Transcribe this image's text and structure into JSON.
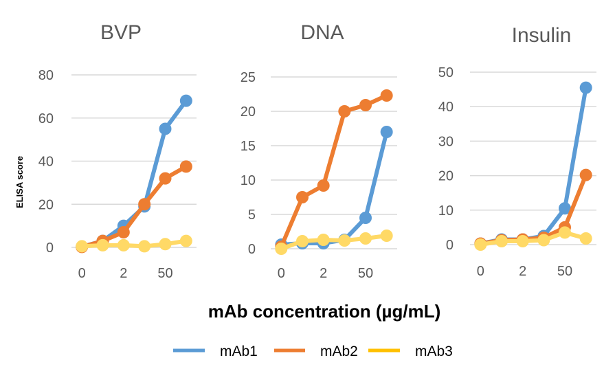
{
  "chart_data": {
    "type": "line",
    "ylabel": "ELISA score",
    "xlabel": "mAb concentration (µg/mL)",
    "legend": {
      "placement": "bottom",
      "entries": [
        {
          "name": "mAb1",
          "color": "#5B9BD5"
        },
        {
          "name": "mAb2",
          "color": "#ED7D31"
        },
        {
          "name": "mAb3",
          "color": "#FFC000"
        }
      ]
    },
    "marker_colors": {
      "mAb1": "#5B9BD5",
      "mAb2": "#ED7D31",
      "mAb3": "#FFD966"
    },
    "panels": [
      {
        "title": "BVP",
        "x_categories_count": 6,
        "x_tick_labels": [
          {
            "index": 0,
            "label": "0"
          },
          {
            "index": 2,
            "label": "2"
          },
          {
            "index": 4,
            "label": "50"
          }
        ],
        "ylim": [
          0,
          80
        ],
        "yticks": [
          0,
          20,
          40,
          60,
          80
        ],
        "grid": true,
        "series": [
          {
            "name": "mAb1",
            "values": [
              0.3,
              3,
              10,
              19,
              55,
              68
            ]
          },
          {
            "name": "mAb2",
            "values": [
              0.2,
              3,
              7,
              20,
              32,
              37.5
            ]
          },
          {
            "name": "mAb3",
            "values": [
              0.5,
              1,
              1,
              0.5,
              1.5,
              3
            ]
          }
        ]
      },
      {
        "title": "DNA",
        "x_categories_count": 6,
        "x_tick_labels": [
          {
            "index": 0,
            "label": "0"
          },
          {
            "index": 2,
            "label": "2"
          },
          {
            "index": 4,
            "label": "50"
          }
        ],
        "ylim": [
          0,
          25
        ],
        "yticks": [
          0,
          5,
          10,
          15,
          20,
          25
        ],
        "grid": true,
        "series": [
          {
            "name": "mAb1",
            "values": [
              0.6,
              0.8,
              0.8,
              1.3,
              4.5,
              17
            ]
          },
          {
            "name": "mAb2",
            "values": [
              0.3,
              7.5,
              9.2,
              20,
              20.9,
              22.3
            ]
          },
          {
            "name": "mAb3",
            "values": [
              0,
              1.1,
              1.3,
              1.2,
              1.5,
              1.9
            ]
          }
        ]
      },
      {
        "title": "Insulin",
        "x_categories_count": 6,
        "x_tick_labels": [
          {
            "index": 0,
            "label": "0"
          },
          {
            "index": 2,
            "label": "2"
          },
          {
            "index": 4,
            "label": "50"
          }
        ],
        "ylim": [
          0,
          50
        ],
        "yticks": [
          0,
          10,
          20,
          30,
          40,
          50
        ],
        "grid": true,
        "series": [
          {
            "name": "mAb1",
            "values": [
              0.3,
              1.5,
              1.5,
              2.5,
              10.5,
              45.5
            ]
          },
          {
            "name": "mAb2",
            "values": [
              0.3,
              1.3,
              1.5,
              2,
              5,
              20.2
            ]
          },
          {
            "name": "mAb3",
            "values": [
              0,
              1,
              1,
              1.3,
              3.5,
              1.8
            ]
          }
        ]
      }
    ]
  }
}
